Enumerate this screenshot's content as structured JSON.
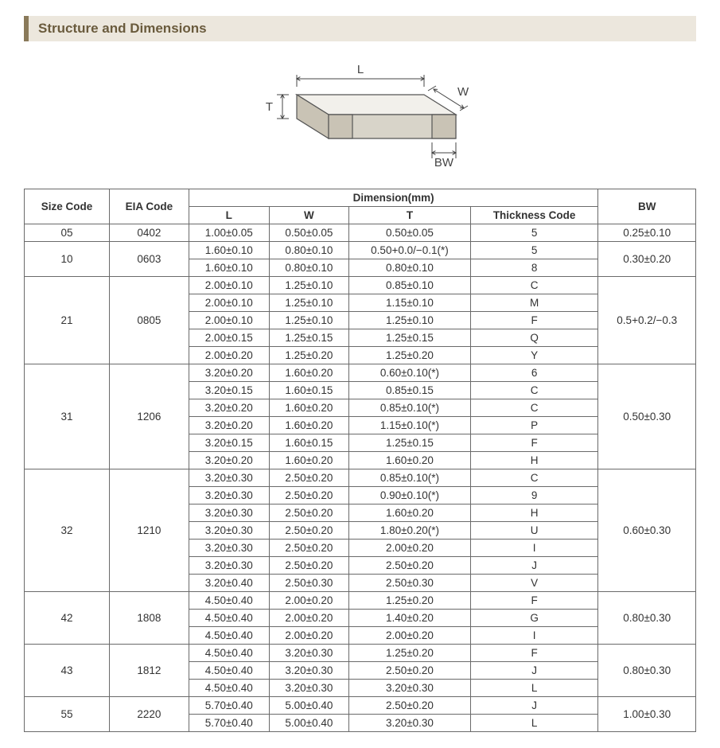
{
  "section_title": "Structure and Dimensions",
  "diagram": {
    "labels": {
      "L": "L",
      "W": "W",
      "T": "T",
      "BW": "BW"
    },
    "colors": {
      "face_light": "#f2f0eb",
      "face_mid": "#d8d4c9",
      "face_dark": "#c9c3b5",
      "edge": "#555555",
      "dim_line": "#444444",
      "text": "#444444"
    },
    "stroke_width": 1.2,
    "label_fontsize": 15
  },
  "table": {
    "header": {
      "size_code": "Size Code",
      "eia_code": "EIA Code",
      "dimension_group": "Dimension(mm)",
      "L": "L",
      "W": "W",
      "T": "T",
      "thickness_code": "Thickness Code",
      "BW": "BW"
    },
    "groups": [
      {
        "size_code": "05",
        "eia_code": "0402",
        "bw": "0.25±0.10",
        "rows": [
          {
            "L": "1.00±0.05",
            "W": "0.50±0.05",
            "T": "0.50±0.05",
            "TC": "5"
          }
        ]
      },
      {
        "size_code": "10",
        "eia_code": "0603",
        "bw": "0.30±0.20",
        "rows": [
          {
            "L": "1.60±0.10",
            "W": "0.80±0.10",
            "T": "0.50+0.0/−0.1(*)",
            "TC": "5"
          },
          {
            "L": "1.60±0.10",
            "W": "0.80±0.10",
            "T": "0.80±0.10",
            "TC": "8"
          }
        ]
      },
      {
        "size_code": "21",
        "eia_code": "0805",
        "bw": "0.5+0.2/−0.3",
        "rows": [
          {
            "L": "2.00±0.10",
            "W": "1.25±0.10",
            "T": "0.85±0.10",
            "TC": "C"
          },
          {
            "L": "2.00±0.10",
            "W": "1.25±0.10",
            "T": "1.15±0.10",
            "TC": "M"
          },
          {
            "L": "2.00±0.10",
            "W": "1.25±0.10",
            "T": "1.25±0.10",
            "TC": "F"
          },
          {
            "L": "2.00±0.15",
            "W": "1.25±0.15",
            "T": "1.25±0.15",
            "TC": "Q"
          },
          {
            "L": "2.00±0.20",
            "W": "1.25±0.20",
            "T": "1.25±0.20",
            "TC": "Y"
          }
        ]
      },
      {
        "size_code": "31",
        "eia_code": "1206",
        "bw": "0.50±0.30",
        "rows": [
          {
            "L": "3.20±0.20",
            "W": "1.60±0.20",
            "T": "0.60±0.10(*)",
            "TC": "6"
          },
          {
            "L": "3.20±0.15",
            "W": "1.60±0.15",
            "T": "0.85±0.15",
            "TC": "C"
          },
          {
            "L": "3.20±0.20",
            "W": "1.60±0.20",
            "T": "0.85±0.10(*)",
            "TC": "C"
          },
          {
            "L": "3.20±0.20",
            "W": "1.60±0.20",
            "T": "1.15±0.10(*)",
            "TC": "P"
          },
          {
            "L": "3.20±0.15",
            "W": "1.60±0.15",
            "T": "1.25±0.15",
            "TC": "F"
          },
          {
            "L": "3.20±0.20",
            "W": "1.60±0.20",
            "T": "1.60±0.20",
            "TC": "H"
          }
        ]
      },
      {
        "size_code": "32",
        "eia_code": "1210",
        "bw": "0.60±0.30",
        "rows": [
          {
            "L": "3.20±0.30",
            "W": "2.50±0.20",
            "T": "0.85±0.10(*)",
            "TC": "C"
          },
          {
            "L": "3.20±0.30",
            "W": "2.50±0.20",
            "T": "0.90±0.10(*)",
            "TC": "9"
          },
          {
            "L": "3.20±0.30",
            "W": "2.50±0.20",
            "T": "1.60±0.20",
            "TC": "H"
          },
          {
            "L": "3.20±0.30",
            "W": "2.50±0.20",
            "T": "1.80±0.20(*)",
            "TC": "U"
          },
          {
            "L": "3.20±0.30",
            "W": "2.50±0.20",
            "T": "2.00±0.20",
            "TC": "I"
          },
          {
            "L": "3.20±0.30",
            "W": "2.50±0.20",
            "T": "2.50±0.20",
            "TC": "J"
          },
          {
            "L": "3.20±0.40",
            "W": "2.50±0.30",
            "T": "2.50±0.30",
            "TC": "V"
          }
        ]
      },
      {
        "size_code": "42",
        "eia_code": "1808",
        "bw": "0.80±0.30",
        "rows": [
          {
            "L": "4.50±0.40",
            "W": "2.00±0.20",
            "T": "1.25±0.20",
            "TC": "F"
          },
          {
            "L": "4.50±0.40",
            "W": "2.00±0.20",
            "T": "1.40±0.20",
            "TC": "G"
          },
          {
            "L": "4.50±0.40",
            "W": "2.00±0.20",
            "T": "2.00±0.20",
            "TC": "I"
          }
        ]
      },
      {
        "size_code": "43",
        "eia_code": "1812",
        "bw": "0.80±0.30",
        "rows": [
          {
            "L": "4.50±0.40",
            "W": "3.20±0.30",
            "T": "1.25±0.20",
            "TC": "F"
          },
          {
            "L": "4.50±0.40",
            "W": "3.20±0.30",
            "T": "2.50±0.20",
            "TC": "J"
          },
          {
            "L": "4.50±0.40",
            "W": "3.20±0.30",
            "T": "3.20±0.30",
            "TC": "L"
          }
        ]
      },
      {
        "size_code": "55",
        "eia_code": "2220",
        "bw": "1.00±0.30",
        "rows": [
          {
            "L": "5.70±0.40",
            "W": "5.00±0.40",
            "T": "2.50±0.20",
            "TC": "J"
          },
          {
            "L": "5.70±0.40",
            "W": "5.00±0.40",
            "T": "3.20±0.30",
            "TC": "L"
          }
        ]
      }
    ]
  }
}
